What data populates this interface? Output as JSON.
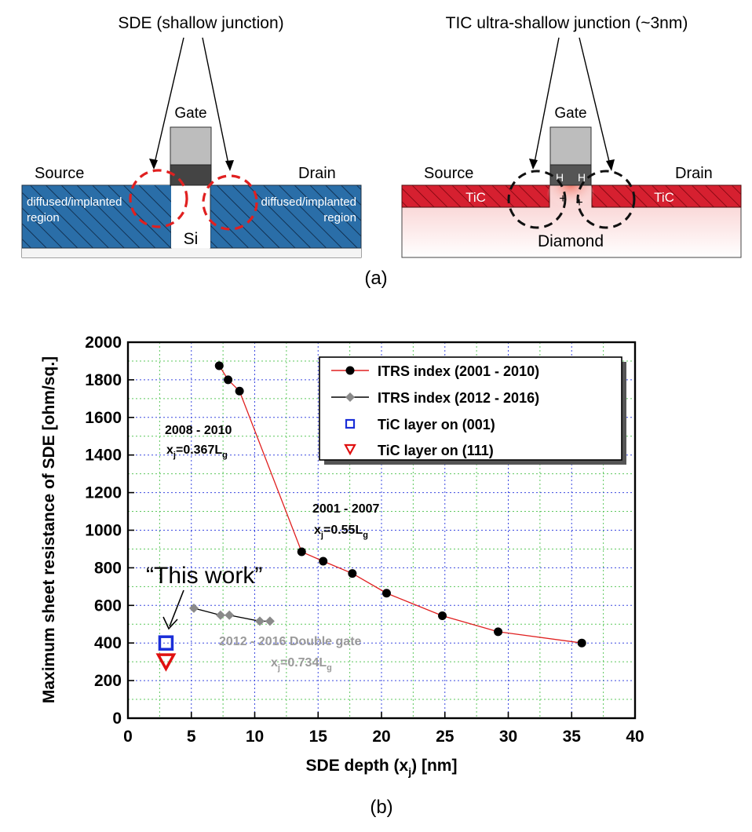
{
  "diagram": {
    "left_title": "SDE (shallow junction)",
    "right_title": "TIC ultra-shallow junction (~3nm)",
    "left": {
      "gate": "Gate",
      "source": "Source",
      "drain": "Drain",
      "region_left_1": "diffused/implanted",
      "region_left_2": "region",
      "region_right_1": "diffused/implanted",
      "region_right_2": "region",
      "substrate": "Si"
    },
    "right": {
      "gate": "Gate",
      "source": "Source",
      "drain": "Drain",
      "tic_left": "TiC",
      "tic_right": "TiC",
      "h_left": "H",
      "h_right": "H",
      "plus_left": "+",
      "plus_right": "+",
      "substrate": "Diamond"
    },
    "panel_label": "(a)"
  },
  "chart_data": {
    "type": "scatter",
    "panel_label": "(b)",
    "xlabel": "SDE depth (x",
    "xlabel_sub": "j",
    "xlabel_tail": ") [nm]",
    "ylabel": "Maximum sheet resistance of SDE [ohm/sq.]",
    "xlim": [
      0,
      40
    ],
    "ylim": [
      0,
      2000
    ],
    "x_ticks": [
      0,
      5,
      10,
      15,
      20,
      25,
      30,
      35,
      40
    ],
    "y_ticks": [
      0,
      200,
      400,
      600,
      800,
      1000,
      1200,
      1400,
      1600,
      1800,
      2000
    ],
    "grid": true,
    "legend_position": "top-right",
    "series": [
      {
        "name": "ITRS index (2001 - 2010)",
        "marker": "circle",
        "color": "#e02020",
        "marker_color": "#000000",
        "x": [
          7.2,
          7.9,
          8.8,
          13.7,
          15.4,
          17.7,
          20.4,
          24.8,
          29.2,
          35.8
        ],
        "y": [
          1875,
          1800,
          1740,
          885,
          835,
          770,
          665,
          545,
          460,
          400
        ]
      },
      {
        "name": "ITRS index (2012 - 2016)",
        "marker": "diamond",
        "color": "#000000",
        "marker_color": "#8a8a8a",
        "x": [
          5.2,
          7.3,
          8.0,
          10.4,
          11.2
        ],
        "y": [
          585,
          548,
          548,
          516,
          516
        ]
      },
      {
        "name": "TiC layer on (001)",
        "marker": "square",
        "color": "#1a2ed8",
        "x": [
          3.0
        ],
        "y": [
          400
        ]
      },
      {
        "name": "TiC layer on (111)",
        "marker": "triangle-down",
        "color": "#e01010",
        "x": [
          3.0
        ],
        "y": [
          300
        ]
      }
    ],
    "annotations": [
      {
        "line1": "2008 - 2010",
        "line2_pre": "x",
        "line2_sub": "j",
        "line2_mid": "=0.367L",
        "line2_sub2": "g"
      },
      {
        "line1": "2001 - 2007",
        "line2_pre": "x",
        "line2_sub": "j",
        "line2_mid": "=0.55L",
        "line2_sub2": "g"
      },
      {
        "line1": "2012 - 2016  Double gate",
        "line2_pre": "x",
        "line2_sub": "j",
        "line2_mid": "=0.734L",
        "line2_sub2": "g"
      },
      {
        "text": "“This work”"
      }
    ]
  }
}
